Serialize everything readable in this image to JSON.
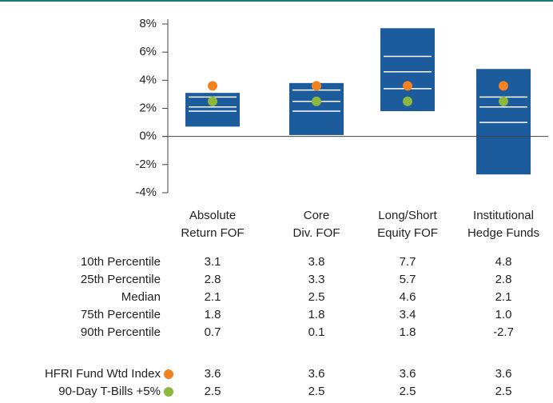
{
  "chart_data": {
    "type": "floating_bar",
    "categories": [
      [
        "Absolute",
        "Return FOF"
      ],
      [
        "Core",
        "Div. FOF"
      ],
      [
        "Long/Short",
        "Equity FOF"
      ],
      [
        "Institutional",
        "Hedge Funds"
      ]
    ],
    "color": "#1d5c9c",
    "ylim": [
      -4,
      8
    ],
    "yticks": [
      {
        "value": 8,
        "label": "8%"
      },
      {
        "value": 6,
        "label": "6%"
      },
      {
        "value": 4,
        "label": "4%"
      },
      {
        "value": 2,
        "label": "2%"
      },
      {
        "value": 0,
        "label": "0%"
      },
      {
        "value": -2,
        "label": "-2%"
      },
      {
        "value": -4,
        "label": "-4%"
      }
    ],
    "percentiles": [
      {
        "name": "10th Percentile",
        "values": [
          3.1,
          3.8,
          7.7,
          4.8
        ]
      },
      {
        "name": "25th Percentile",
        "values": [
          2.8,
          3.3,
          5.7,
          2.8
        ]
      },
      {
        "name": "Median",
        "values": [
          2.1,
          2.5,
          4.6,
          2.1
        ]
      },
      {
        "name": "75th Percentile",
        "values": [
          1.8,
          1.8,
          3.4,
          1.0
        ],
        "value_labels": [
          "1.8",
          "1.8",
          "3.4",
          "1.0"
        ]
      },
      {
        "name": "90th Percentile",
        "values": [
          0.7,
          0.1,
          1.8,
          -2.7
        ]
      }
    ],
    "series": [
      {
        "name": "HFRI Fund Wtd Index",
        "color": "#f58220",
        "values": [
          3.6,
          3.6,
          3.6,
          3.6
        ]
      },
      {
        "name": "90-Day T-Bills +5%",
        "color": "#8db83f",
        "values": [
          2.5,
          2.5,
          2.5,
          2.5
        ]
      }
    ]
  }
}
